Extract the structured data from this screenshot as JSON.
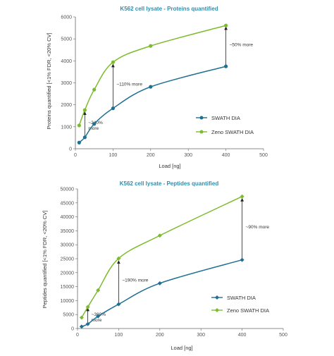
{
  "colors": {
    "swath": "#1f6f93",
    "zeno": "#7cbb2d",
    "title": "#2e8fae"
  },
  "chart_data": [
    {
      "type": "line",
      "title": "K562 cell lysate - Proteins quantified",
      "xlabel": "Load [ng]",
      "ylabel": "Proteins quantified [<1% FDR, <20% CV]",
      "xlim": [
        0,
        500
      ],
      "ylim": [
        0,
        6000
      ],
      "xticks": [
        0,
        100,
        200,
        300,
        400,
        500
      ],
      "yticks": [
        0,
        1000,
        2000,
        3000,
        4000,
        5000,
        6000
      ],
      "marker": "circle",
      "legend_position": "center-right",
      "series": [
        {
          "name": "SWATH DIA",
          "x": [
            10,
            25,
            50,
            100,
            200,
            400
          ],
          "values": [
            280,
            520,
            1130,
            1840,
            2820,
            3750
          ]
        },
        {
          "name": "Zeno SWATH DIA",
          "x": [
            10,
            25,
            50,
            100,
            200,
            400
          ],
          "values": [
            1060,
            1760,
            2690,
            3940,
            4680,
            5610
          ]
        }
      ],
      "annotations": [
        {
          "x": 25,
          "from": 560,
          "to": 1680,
          "lines": [
            "~240%",
            "more"
          ]
        },
        {
          "x": 100,
          "from": 1900,
          "to": 3850,
          "lines": [
            "~110% more"
          ]
        },
        {
          "x": 400,
          "from": 3800,
          "to": 5550,
          "lines": [
            "~50% more"
          ]
        }
      ]
    },
    {
      "type": "line",
      "title": "K562 cell lysate - Peptides quantified",
      "xlabel": "Load [ng]",
      "ylabel": "Peptides quantified [<1% FDR, <20% CV]",
      "xlim": [
        0,
        500
      ],
      "ylim": [
        0,
        50000
      ],
      "xticks": [
        0,
        100,
        200,
        300,
        400,
        500
      ],
      "yticks": [
        0,
        5000,
        10000,
        15000,
        20000,
        25000,
        30000,
        35000,
        40000,
        45000,
        50000
      ],
      "marker": "diamond",
      "legend_position": "bottom-right",
      "series": [
        {
          "name": "SWATH DIA",
          "x": [
            10,
            25,
            50,
            100,
            200,
            400
          ],
          "values": [
            700,
            1600,
            4400,
            8700,
            16200,
            24600
          ]
        },
        {
          "name": "Zeno SWATH DIA",
          "x": [
            10,
            25,
            50,
            100,
            200,
            400
          ],
          "values": [
            3900,
            7700,
            13700,
            25100,
            33300,
            47300
          ]
        }
      ],
      "annotations": [
        {
          "x": 25,
          "from": 1900,
          "to": 7300,
          "lines": [
            "~380%",
            "more"
          ]
        },
        {
          "x": 100,
          "from": 9200,
          "to": 24300,
          "lines": [
            "~190% more"
          ]
        },
        {
          "x": 400,
          "from": 25200,
          "to": 46600,
          "lines": [
            "~90% more"
          ]
        }
      ]
    }
  ]
}
